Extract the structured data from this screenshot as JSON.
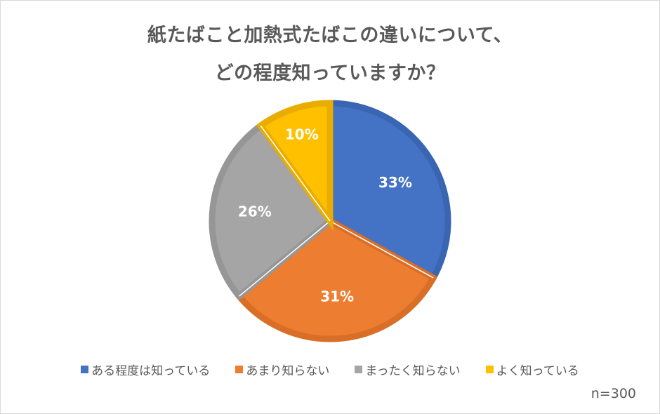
{
  "chart_data": {
    "type": "pie",
    "title": "紙たばこと加熱式たばこの違いについて、どの程度知っていますか？",
    "title_lines": [
      "紙たばこと加熱式たばこの違いについて、",
      "どの程度知っていますか？"
    ],
    "categories": [
      "ある程度は知っている",
      "あまり知らない",
      "まったく知らない",
      "よく知っている"
    ],
    "values": [
      33,
      31,
      26,
      10
    ],
    "labels": [
      "33%",
      "31%",
      "26%",
      "10%"
    ],
    "colors": [
      "#4472c4",
      "#ed7d31",
      "#a5a5a5",
      "#ffc000"
    ],
    "border_colors": [
      "#3a65b3",
      "#d96f26",
      "#969696",
      "#e8ad00"
    ],
    "start_angle": "12 o'clock, clockwise",
    "legend_position": "bottom",
    "annotation": "n=300"
  },
  "legend": {
    "items": [
      {
        "label": "ある程度は知っている",
        "color": "#4472c4"
      },
      {
        "label": "あまり知らない",
        "color": "#ed7d31"
      },
      {
        "label": "まったく知らない",
        "color": "#a5a5a5"
      },
      {
        "label": "よく知っている",
        "color": "#ffc000"
      }
    ]
  },
  "sample_size": "n=300"
}
